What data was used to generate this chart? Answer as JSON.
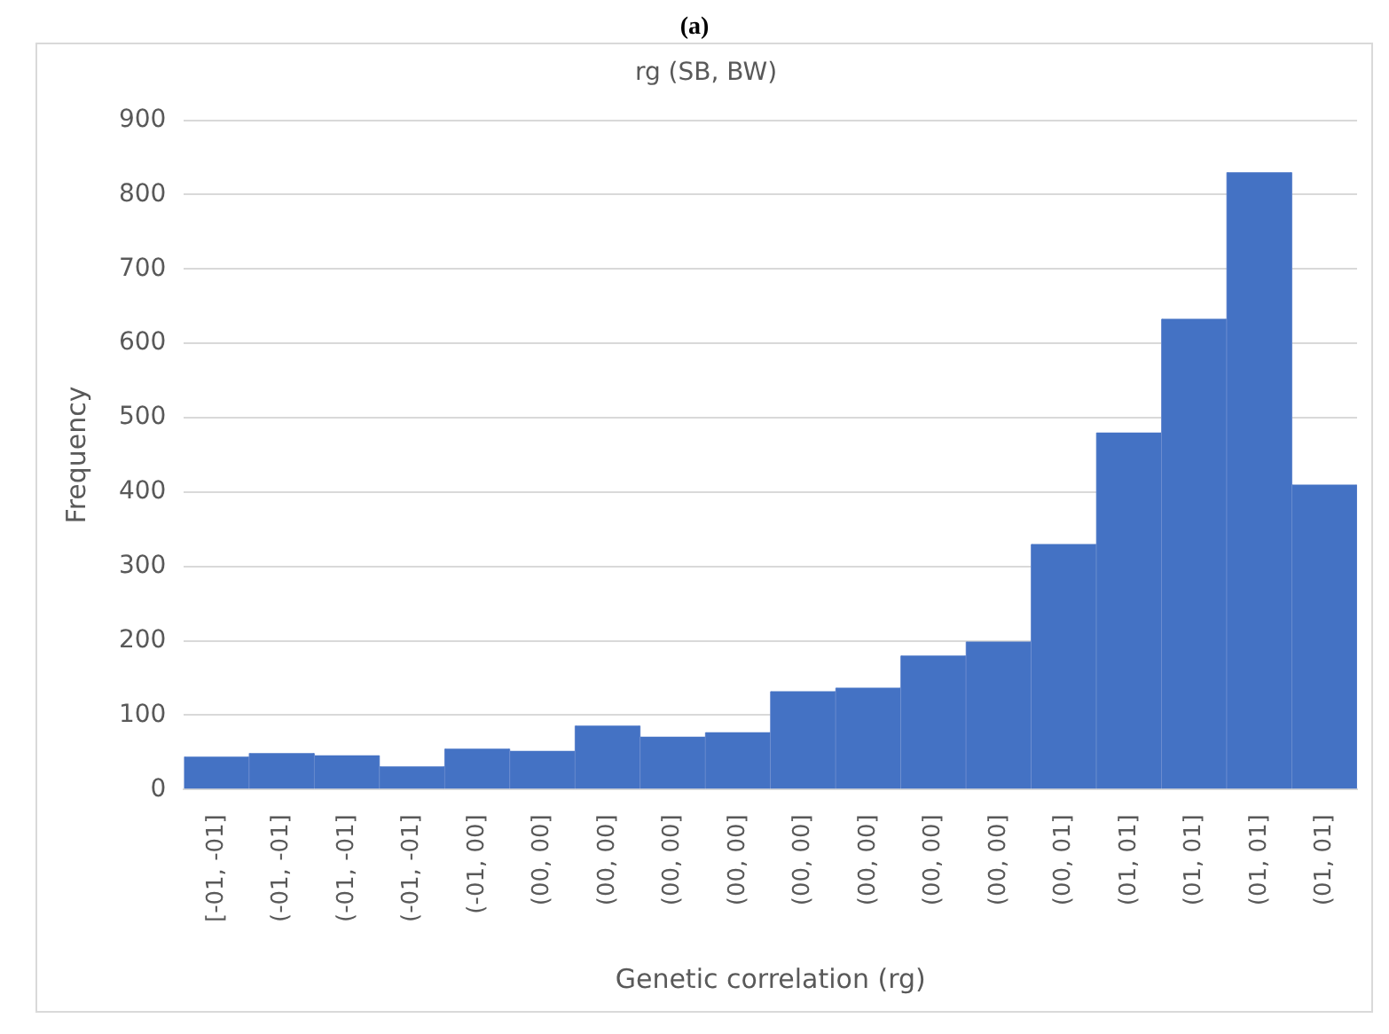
{
  "chart_data": {
    "type": "bar",
    "title": "rg (SB, BW)",
    "xlabel": "Genetic correlation (rg)",
    "ylabel": "Frequency",
    "annotations": [
      "(a)"
    ],
    "categories": [
      "[-01, -01]",
      "(-01, -01]",
      "(-01, -01]",
      "(-01, -01]",
      "(-01, 00]",
      "(00, 00]",
      "(00, 00]",
      "(00, 00]",
      "(00, 00]",
      "(00, 00]",
      "(00, 00]",
      "(00, 00]",
      "(00, 00]",
      "(00, 01]",
      "(01, 01]",
      "(01, 01]",
      "(01, 01]",
      "(01, 01]"
    ],
    "values": [
      44,
      49,
      46,
      31,
      55,
      52,
      86,
      71,
      77,
      132,
      137,
      180,
      199,
      330,
      480,
      633,
      830,
      410
    ],
    "color": "#4472c4",
    "ylim": [
      0,
      900
    ],
    "yticks": [
      0,
      100,
      200,
      300,
      400,
      500,
      600,
      700,
      800,
      900
    ],
    "grid": "y",
    "legend": false
  }
}
